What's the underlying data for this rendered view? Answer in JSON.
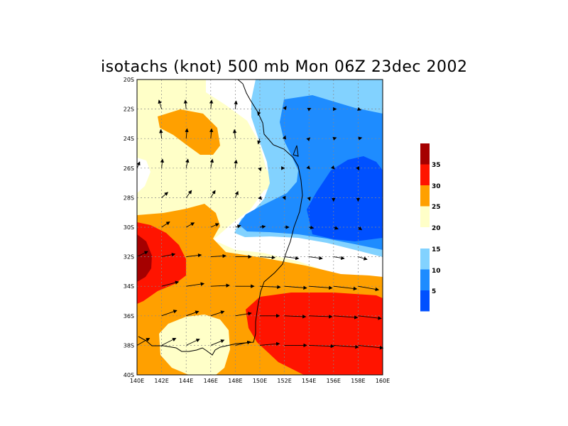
{
  "title": "isotachs (knot) 500 mb Mon 06Z 23dec 2002",
  "map": {
    "variable": "isotachs",
    "units": "knot",
    "level": "500 mb",
    "valid_time": "Mon 06Z 23dec 2002",
    "lon_range": [
      140,
      160
    ],
    "lat_range": [
      -40,
      -20
    ],
    "lon_ticks": [
      "140E",
      "142E",
      "144E",
      "146E",
      "148E",
      "150E",
      "152E",
      "154E",
      "156E",
      "158E",
      "160E"
    ],
    "lat_ticks": [
      "20S",
      "22S",
      "24S",
      "26S",
      "28S",
      "30S",
      "32S",
      "34S",
      "36S",
      "38S",
      "40S"
    ],
    "gridlines": true
  },
  "colorbar": {
    "bins": [
      {
        "min": 35,
        "max": null,
        "color": "#a50000"
      },
      {
        "min": 30,
        "max": 35,
        "color": "#ff1400"
      },
      {
        "min": 25,
        "max": 30,
        "color": "#ffa000"
      },
      {
        "min": 20,
        "max": 25,
        "color": "#ffffc8"
      },
      {
        "min": 15,
        "max": 20,
        "color": "#ffffff"
      },
      {
        "min": 10,
        "max": 15,
        "color": "#82d2ff"
      },
      {
        "min": 5,
        "max": 10,
        "color": "#1e8cff"
      },
      {
        "min": null,
        "max": 5,
        "color": "#0050ff"
      }
    ],
    "labels": [
      "35",
      "30",
      "25",
      "20",
      "15",
      "10",
      "5"
    ]
  },
  "colors": {
    "white": "#ffffff",
    "light_yellow": "#ffffc8",
    "orange": "#ffa000",
    "red": "#ff1400",
    "dark_red": "#a50000",
    "light_blue": "#82d2ff",
    "mid_blue": "#1e8cff",
    "blue": "#0050ff"
  },
  "wind_vectors": [
    {
      "lon": 142,
      "lat": -22,
      "u": -3,
      "v": 10
    },
    {
      "lon": 144,
      "lat": -22,
      "u": -1,
      "v": 10
    },
    {
      "lon": 146,
      "lat": -22,
      "u": 1,
      "v": 10
    },
    {
      "lon": 148,
      "lat": -22,
      "u": 1,
      "v": 9
    },
    {
      "lon": 150,
      "lat": -22,
      "u": -2,
      "v": -7
    },
    {
      "lon": 152,
      "lat": -22,
      "u": 2,
      "v": 3
    },
    {
      "lon": 154,
      "lat": -22,
      "u": 2,
      "v": 1
    },
    {
      "lon": 156,
      "lat": -22,
      "u": 3,
      "v": 0
    },
    {
      "lon": 158,
      "lat": -22,
      "u": 3,
      "v": -1
    },
    {
      "lon": 142,
      "lat": -24,
      "u": -1,
      "v": 10
    },
    {
      "lon": 144,
      "lat": -24,
      "u": 1,
      "v": 11
    },
    {
      "lon": 146,
      "lat": -24,
      "u": 1,
      "v": 11
    },
    {
      "lon": 148,
      "lat": -24,
      "u": -1,
      "v": 10
    },
    {
      "lon": 150,
      "lat": -24,
      "u": -2,
      "v": -6
    },
    {
      "lon": 152,
      "lat": -24,
      "u": 1,
      "v": 3
    },
    {
      "lon": 154,
      "lat": -24,
      "u": 1,
      "v": 1
    },
    {
      "lon": 156,
      "lat": -24,
      "u": 3,
      "v": 1
    },
    {
      "lon": 158,
      "lat": -24,
      "u": 4,
      "v": 1
    },
    {
      "lon": 140,
      "lat": -26,
      "u": 3,
      "v": 7
    },
    {
      "lon": 142,
      "lat": -26,
      "u": 1,
      "v": 10
    },
    {
      "lon": 144,
      "lat": -26,
      "u": 2,
      "v": 10
    },
    {
      "lon": 146,
      "lat": -26,
      "u": 2,
      "v": 10
    },
    {
      "lon": 148,
      "lat": -26,
      "u": 1,
      "v": 9
    },
    {
      "lon": 150,
      "lat": -26,
      "u": 1,
      "v": -3
    },
    {
      "lon": 152,
      "lat": -26,
      "u": 0,
      "v": 0
    },
    {
      "lon": 154,
      "lat": -26,
      "u": 1,
      "v": -1
    },
    {
      "lon": 156,
      "lat": -26,
      "u": 1,
      "v": -1
    },
    {
      "lon": 158,
      "lat": -26,
      "u": 1,
      "v": -2
    },
    {
      "lon": 142,
      "lat": -28,
      "u": 7,
      "v": 6
    },
    {
      "lon": 144,
      "lat": -28,
      "u": 6,
      "v": 8
    },
    {
      "lon": 146,
      "lat": -28,
      "u": 5,
      "v": 8
    },
    {
      "lon": 148,
      "lat": -28,
      "u": 3,
      "v": 7
    },
    {
      "lon": 150,
      "lat": -28,
      "u": 2,
      "v": -2
    },
    {
      "lon": 152,
      "lat": -28,
      "u": 1,
      "v": -2
    },
    {
      "lon": 154,
      "lat": -28,
      "u": 1,
      "v": -3
    },
    {
      "lon": 156,
      "lat": -28,
      "u": 0,
      "v": -4
    },
    {
      "lon": 158,
      "lat": -28,
      "u": 0,
      "v": -4
    },
    {
      "lon": 142,
      "lat": -30,
      "u": 9,
      "v": 6
    },
    {
      "lon": 144,
      "lat": -30,
      "u": 9,
      "v": 5
    },
    {
      "lon": 146,
      "lat": -30,
      "u": 9,
      "v": 4
    },
    {
      "lon": 148,
      "lat": -30,
      "u": 6,
      "v": 2
    },
    {
      "lon": 150,
      "lat": -30,
      "u": 6,
      "v": 1
    },
    {
      "lon": 152,
      "lat": -30,
      "u": 5,
      "v": 0
    },
    {
      "lon": 154,
      "lat": -30,
      "u": 5,
      "v": -1
    },
    {
      "lon": 156,
      "lat": -30,
      "u": 5,
      "v": -2
    },
    {
      "lon": 158,
      "lat": -30,
      "u": 4,
      "v": -3
    },
    {
      "lon": 140,
      "lat": -32,
      "u": 12,
      "v": 6
    },
    {
      "lon": 142,
      "lat": -32,
      "u": 15,
      "v": 3
    },
    {
      "lon": 144,
      "lat": -32,
      "u": 17,
      "v": 2
    },
    {
      "lon": 146,
      "lat": -32,
      "u": 17,
      "v": 1
    },
    {
      "lon": 148,
      "lat": -32,
      "u": 18,
      "v": 0
    },
    {
      "lon": 150,
      "lat": -32,
      "u": 17,
      "v": -1
    },
    {
      "lon": 152,
      "lat": -32,
      "u": 16,
      "v": -2
    },
    {
      "lon": 154,
      "lat": -32,
      "u": 15,
      "v": -2
    },
    {
      "lon": 156,
      "lat": -32,
      "u": 12,
      "v": -2
    },
    {
      "lon": 158,
      "lat": -32,
      "u": 10,
      "v": -3
    },
    {
      "lon": 142,
      "lat": -34,
      "u": 19,
      "v": 5
    },
    {
      "lon": 144,
      "lat": -34,
      "u": 20,
      "v": 3
    },
    {
      "lon": 146,
      "lat": -34,
      "u": 21,
      "v": 1
    },
    {
      "lon": 148,
      "lat": -34,
      "u": 21,
      "v": 0
    },
    {
      "lon": 150,
      "lat": -34,
      "u": 23,
      "v": -1
    },
    {
      "lon": 152,
      "lat": -34,
      "u": 25,
      "v": -2
    },
    {
      "lon": 154,
      "lat": -34,
      "u": 26,
      "v": -2
    },
    {
      "lon": 156,
      "lat": -34,
      "u": 26,
      "v": -3
    },
    {
      "lon": 158,
      "lat": -34,
      "u": 23,
      "v": -4
    },
    {
      "lon": 142,
      "lat": -36,
      "u": 17,
      "v": 6
    },
    {
      "lon": 144,
      "lat": -36,
      "u": 14,
      "v": 5
    },
    {
      "lon": 146,
      "lat": -36,
      "u": 15,
      "v": 5
    },
    {
      "lon": 148,
      "lat": -36,
      "u": 18,
      "v": 3
    },
    {
      "lon": 150,
      "lat": -36,
      "u": 22,
      "v": 0
    },
    {
      "lon": 152,
      "lat": -36,
      "u": 24,
      "v": -1
    },
    {
      "lon": 154,
      "lat": -36,
      "u": 26,
      "v": -1
    },
    {
      "lon": 156,
      "lat": -36,
      "u": 27,
      "v": -2
    },
    {
      "lon": 158,
      "lat": -36,
      "u": 26,
      "v": -3
    },
    {
      "lon": 140,
      "lat": -38,
      "u": 14,
      "v": 8
    },
    {
      "lon": 142,
      "lat": -38,
      "u": 16,
      "v": 8
    },
    {
      "lon": 144,
      "lat": -38,
      "u": 15,
      "v": 7
    },
    {
      "lon": 146,
      "lat": -38,
      "u": 15,
      "v": 6
    },
    {
      "lon": 148,
      "lat": -38,
      "u": 17,
      "v": 4
    },
    {
      "lon": 150,
      "lat": -38,
      "u": 22,
      "v": 2
    },
    {
      "lon": 152,
      "lat": -38,
      "u": 25,
      "v": 0
    },
    {
      "lon": 154,
      "lat": -38,
      "u": 28,
      "v": -1
    },
    {
      "lon": 156,
      "lat": -38,
      "u": 28,
      "v": -2
    },
    {
      "lon": 158,
      "lat": -38,
      "u": 28,
      "v": -3
    }
  ]
}
